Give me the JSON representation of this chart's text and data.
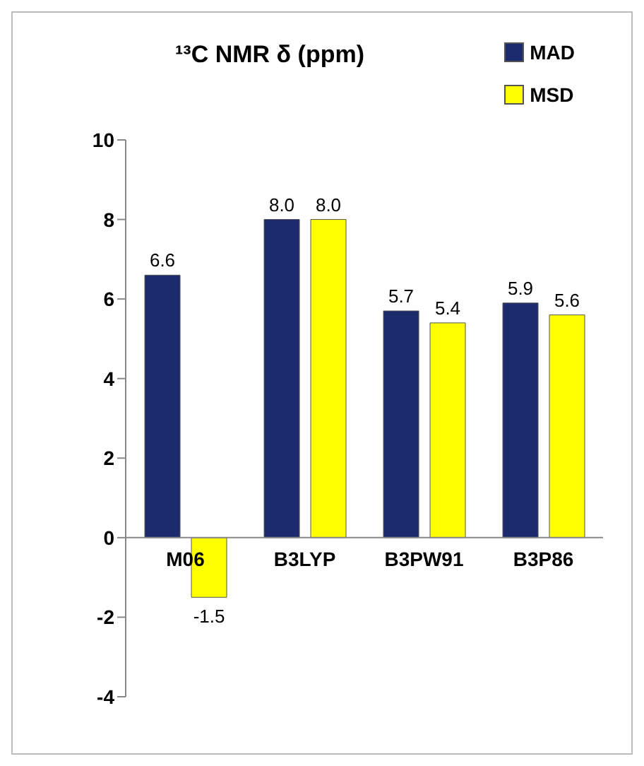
{
  "chart_data": {
    "type": "bar",
    "title": "¹³C NMR δ (ppm)",
    "categories": [
      "M06",
      "B3LYP",
      "B3PW91",
      "B3P86"
    ],
    "series": [
      {
        "name": "MAD",
        "color": "#1c2a6e",
        "values": [
          6.6,
          8.0,
          5.7,
          5.9
        ],
        "value_labels": [
          "6.6",
          "8.0",
          "5.7",
          "5.9"
        ]
      },
      {
        "name": "MSD",
        "color": "#ffff00",
        "values": [
          -1.5,
          8.0,
          5.4,
          5.6
        ],
        "value_labels": [
          "-1.5",
          "8.0",
          "5.4",
          "5.6"
        ]
      }
    ],
    "ylim": [
      -4,
      10
    ],
    "yticks": [
      -4,
      -2,
      0,
      2,
      4,
      6,
      8,
      10
    ],
    "legend": "top right"
  }
}
